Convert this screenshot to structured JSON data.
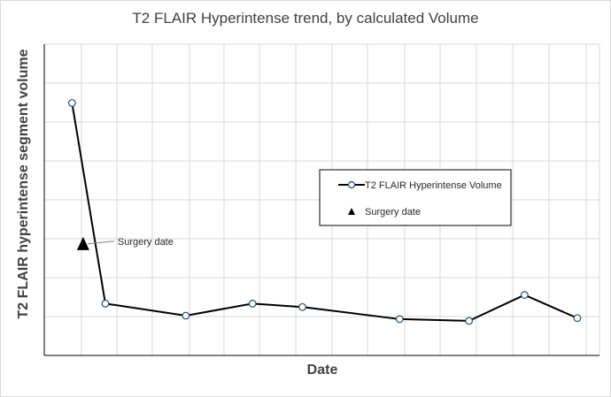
{
  "chart_data": {
    "type": "line",
    "title": "T2 FLAIR Hyperintense trend, by calculated Volume",
    "xlabel": "Date",
    "ylabel": "T2 FLAIR hyperintense segment volume",
    "x": [
      0,
      1.2,
      4.1,
      6.5,
      8.3,
      11.8,
      14.3,
      16.3,
      18.2
    ],
    "xlim": [
      -1.0,
      19.0
    ],
    "ylim": [
      0,
      9
    ],
    "grid": true,
    "legend_position": "center-right",
    "series": [
      {
        "name": "T2 FLAIR Hyperintense Volume",
        "color": "#000000",
        "marker_fill": "#ffffff",
        "marker_edge": "#1f4e79",
        "values": [
          7.3,
          1.5,
          1.15,
          1.5,
          1.4,
          1.05,
          1.0,
          1.75,
          1.08
        ]
      },
      {
        "name": "Surgery date",
        "marker": "triangle",
        "color": "#000000",
        "x": [
          0.4
        ],
        "values": [
          3.2
        ]
      }
    ],
    "annotations": [
      {
        "text": "Surgery date"
      }
    ]
  }
}
